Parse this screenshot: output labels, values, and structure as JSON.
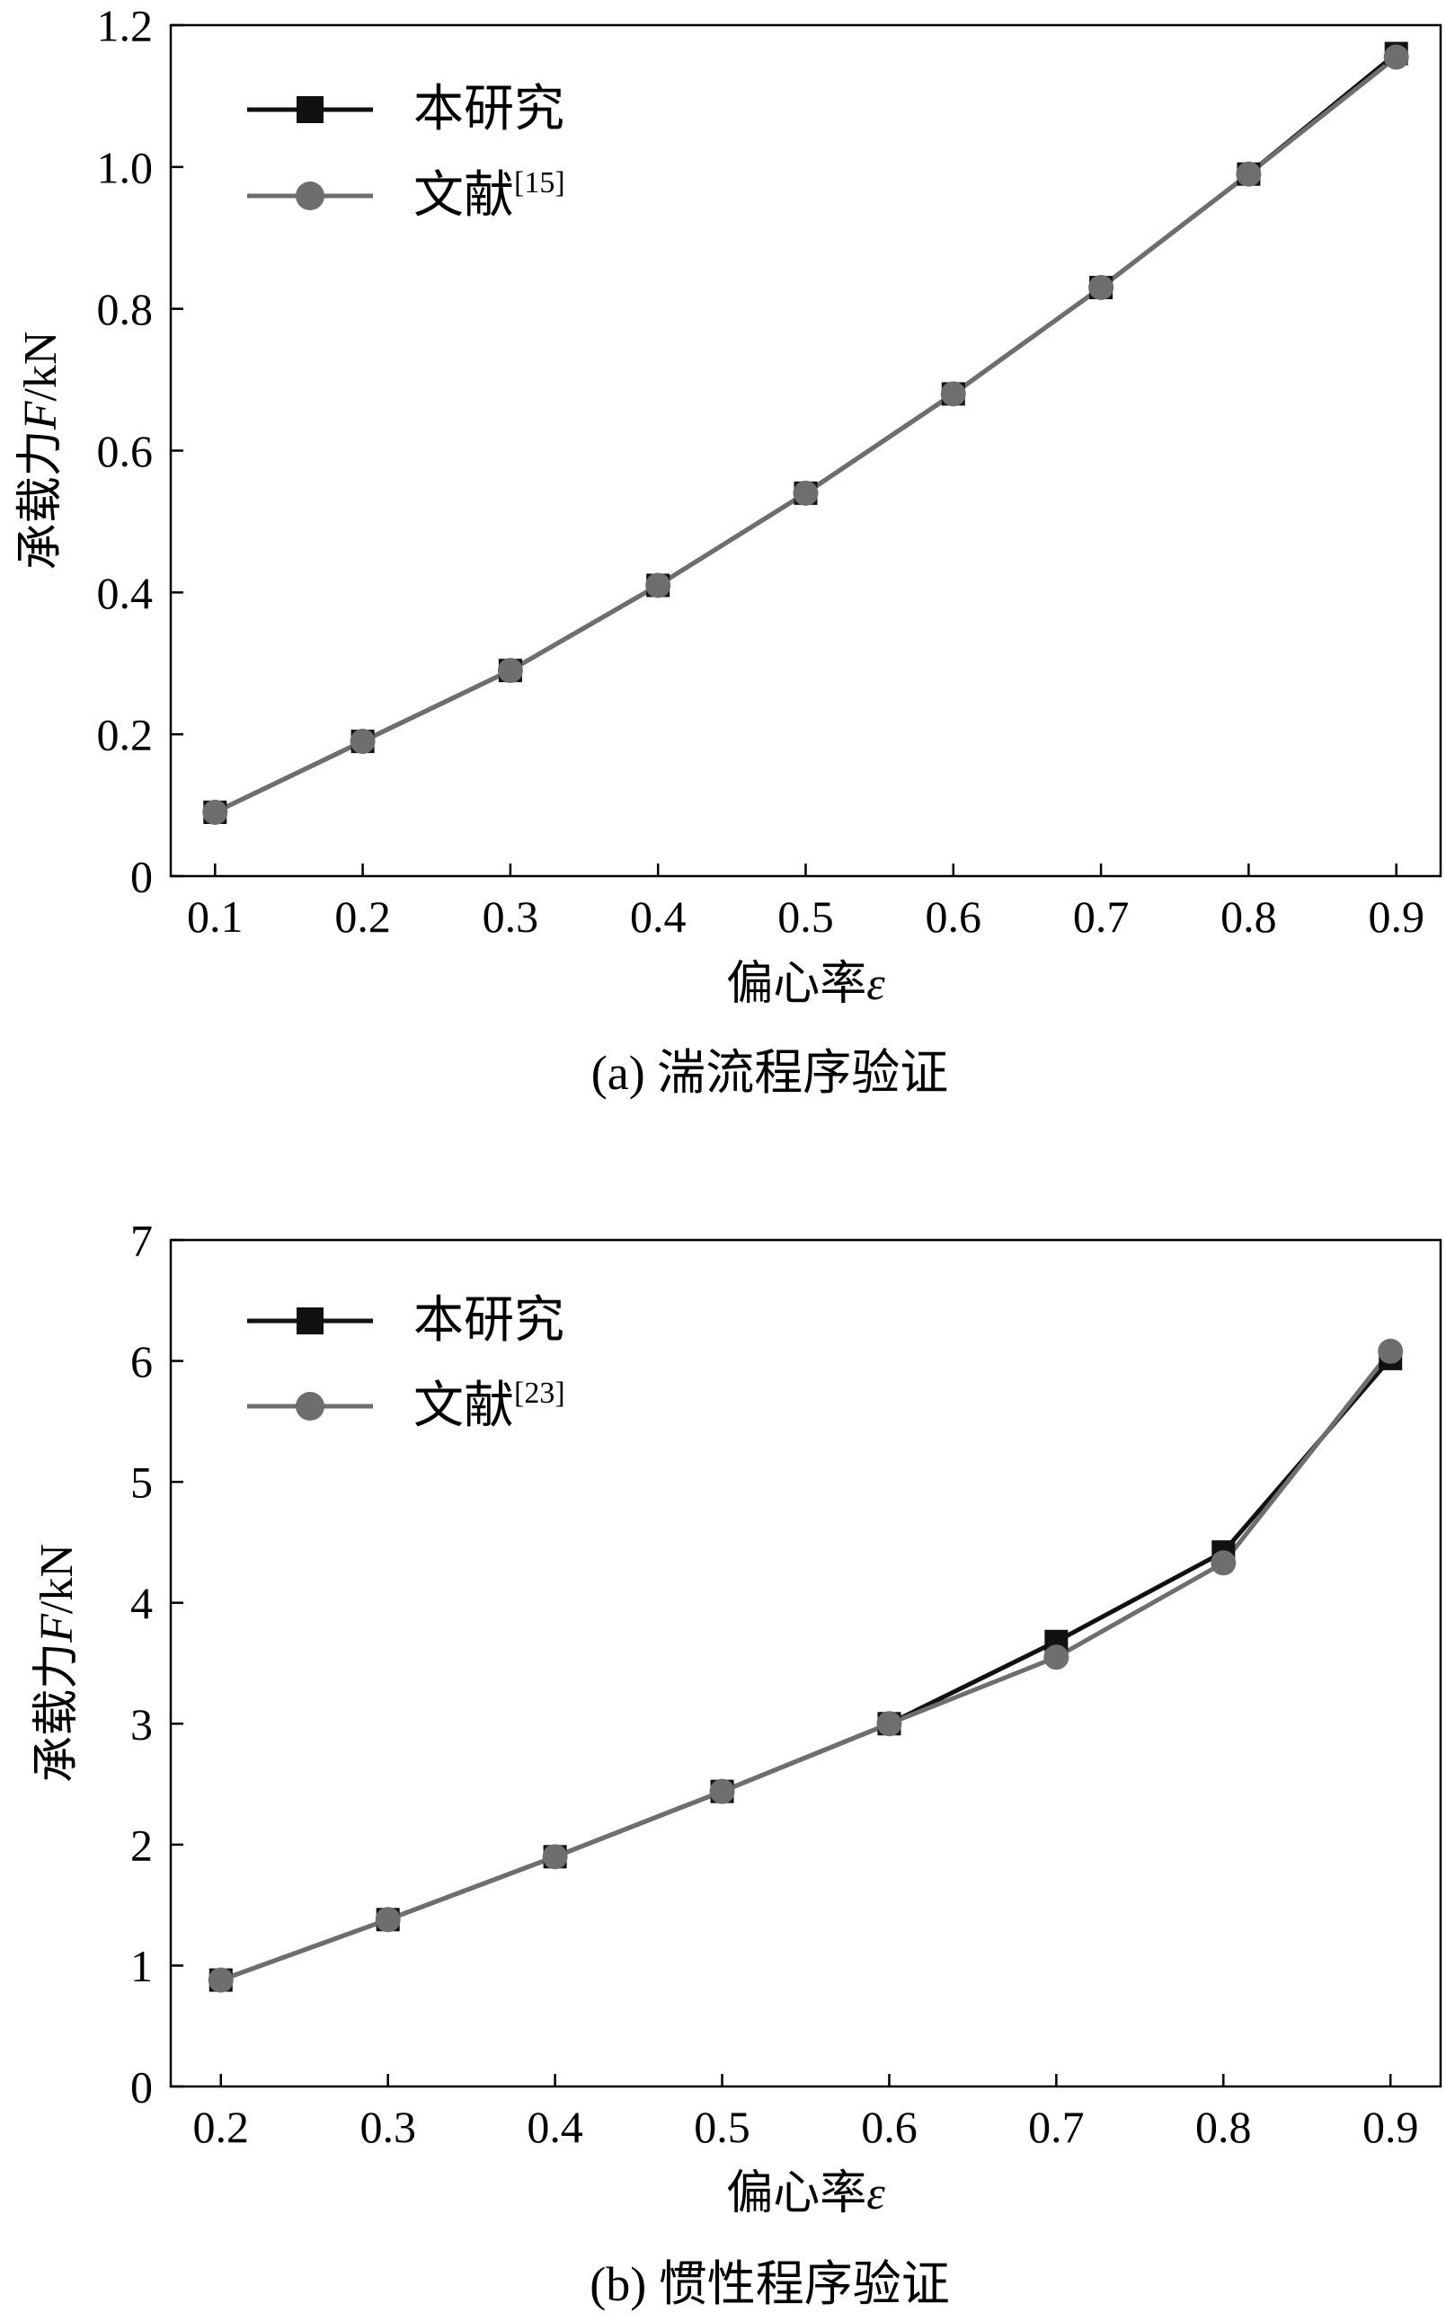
{
  "colors": {
    "series_a": "#111111",
    "series_b": "#6e6e6e",
    "axes": "#000000",
    "background": "#ffffff"
  },
  "chart_data": [
    {
      "id": "a",
      "type": "line",
      "caption": "(a) 湍流程序验证",
      "xlabel": "偏心率",
      "xlabel_symbol": "ε",
      "ylabel": "承载力",
      "ylabel_symbol": "F",
      "ylabel_unit": "/kN",
      "xlim": [
        0.07,
        0.93
      ],
      "ylim": [
        0,
        1.2
      ],
      "x": [
        0.1,
        0.2,
        0.3,
        0.4,
        0.5,
        0.6,
        0.7,
        0.8,
        0.9
      ],
      "x_ticks": [
        "0.1",
        "0.2",
        "0.3",
        "0.4",
        "0.5",
        "0.6",
        "0.7",
        "0.8",
        "0.9"
      ],
      "y_ticks": [
        0,
        0.2,
        0.4,
        0.6,
        0.8,
        1.0,
        1.2
      ],
      "y_tick_labels": [
        "0",
        "0.2",
        "0.4",
        "0.6",
        "0.8",
        "1.0",
        "1.2"
      ],
      "legend_position": "top-left",
      "series": [
        {
          "name": "本研究",
          "name_sup": "",
          "marker": "square",
          "color": "#111111",
          "values": [
            0.09,
            0.19,
            0.29,
            0.41,
            0.54,
            0.68,
            0.83,
            0.99,
            1.16
          ]
        },
        {
          "name": "文献",
          "name_sup": "[15]",
          "marker": "circle",
          "color": "#6e6e6e",
          "values": [
            0.09,
            0.19,
            0.29,
            0.41,
            0.54,
            0.68,
            0.83,
            0.99,
            1.155
          ]
        }
      ]
    },
    {
      "id": "b",
      "type": "line",
      "caption": "(b) 惯性程序验证",
      "xlabel": "偏心率",
      "xlabel_symbol": "ε",
      "ylabel": "承载力",
      "ylabel_symbol": "F",
      "ylabel_unit": "/kN",
      "xlim": [
        0.17,
        0.93
      ],
      "ylim": [
        0,
        7
      ],
      "x": [
        0.2,
        0.3,
        0.4,
        0.5,
        0.6,
        0.7,
        0.8,
        0.9
      ],
      "x_ticks": [
        "0.2",
        "0.3",
        "0.4",
        "0.5",
        "0.6",
        "0.7",
        "0.8",
        "0.9"
      ],
      "y_ticks": [
        0,
        1,
        2,
        3,
        4,
        5,
        6,
        7
      ],
      "y_tick_labels": [
        "0",
        "1",
        "2",
        "3",
        "4",
        "5",
        "6",
        "7"
      ],
      "legend_position": "top-left",
      "series": [
        {
          "name": "本研究",
          "name_sup": "",
          "marker": "square",
          "color": "#111111",
          "values": [
            0.88,
            1.38,
            1.9,
            2.44,
            3.0,
            3.68,
            4.42,
            6.02
          ]
        },
        {
          "name": "文献",
          "name_sup": "[23]",
          "marker": "circle",
          "color": "#6e6e6e",
          "values": [
            0.88,
            1.38,
            1.9,
            2.44,
            3.0,
            3.55,
            4.33,
            6.08
          ]
        }
      ]
    }
  ]
}
